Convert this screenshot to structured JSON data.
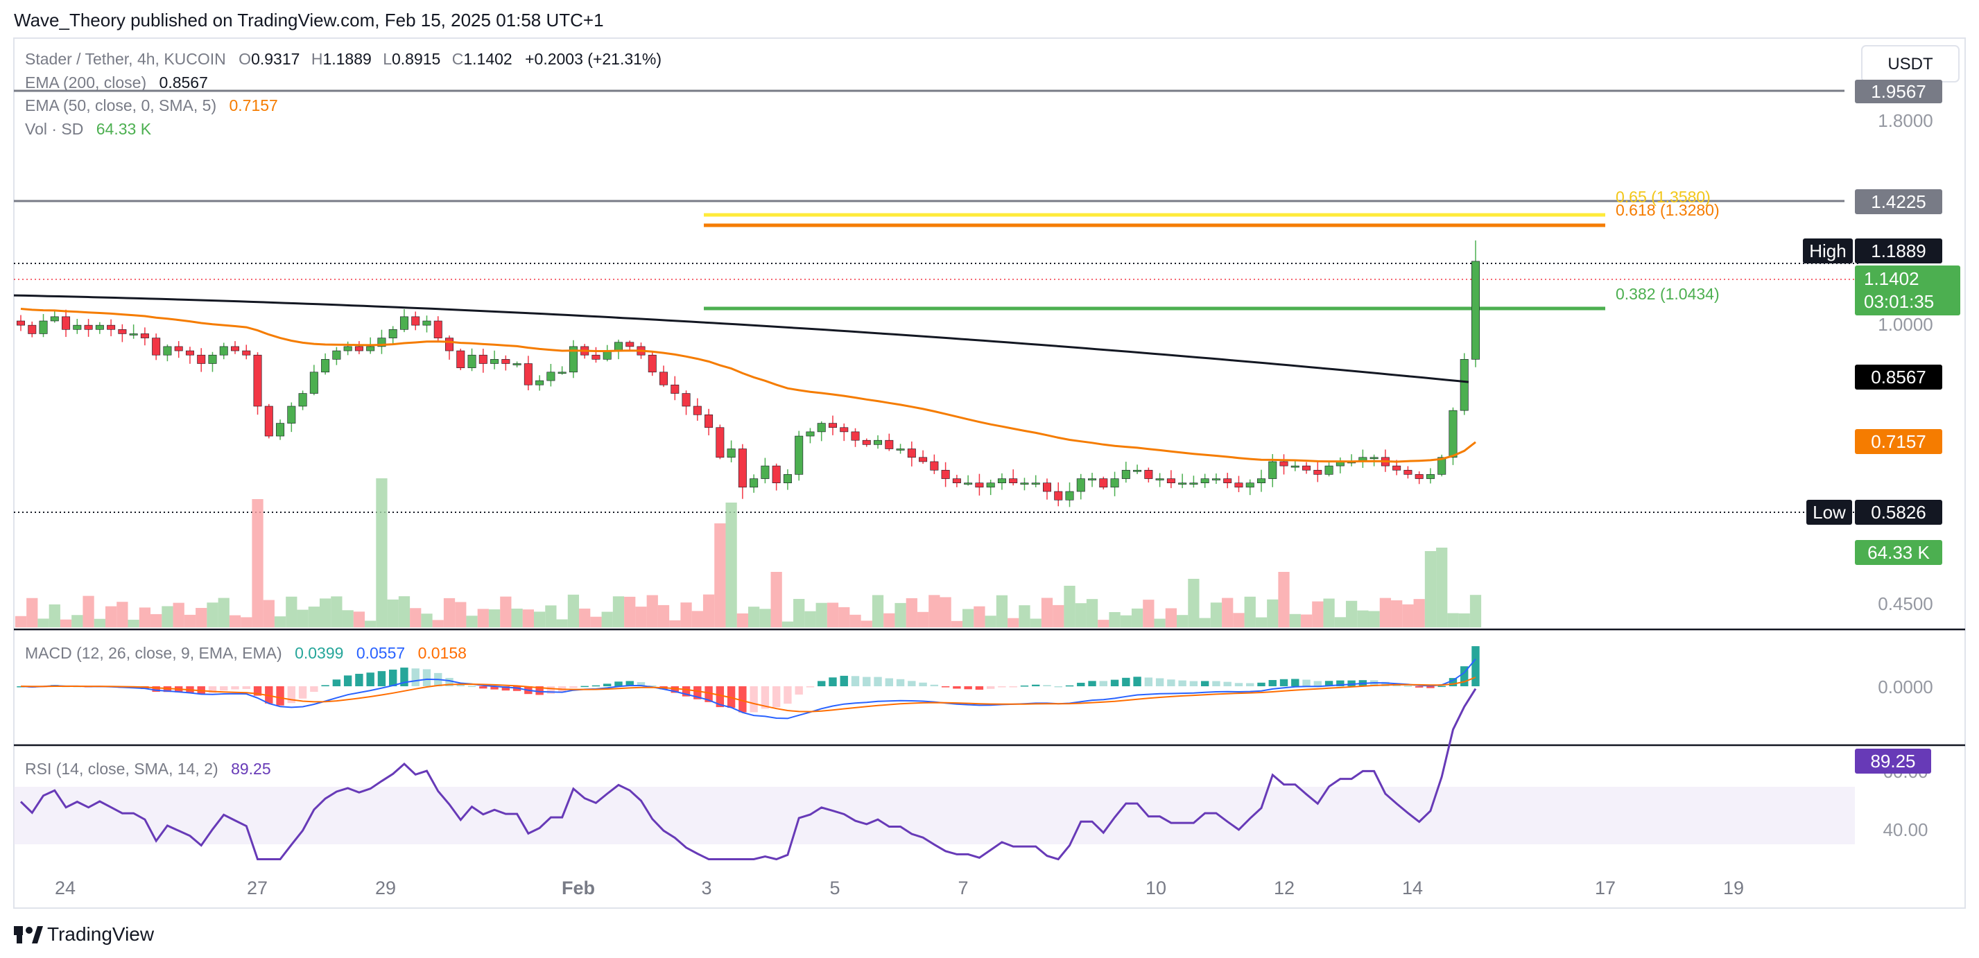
{
  "publisher_line": "Wave_Theory published on TradingView.com, Feb 15, 2025 01:58 UTC+1",
  "footer_brand": "TradingView",
  "currency_button": "USDT",
  "legend": {
    "symbol": "Stader / Tether, 4h, KUCOIN",
    "o_label": "O",
    "o_val": "0.9317",
    "h_label": "H",
    "h_val": "1.1889",
    "l_label": "L",
    "l_val": "0.8915",
    "c_label": "C",
    "c_val": "1.1402",
    "change": "+0.2003 (+21.31%)",
    "ema200_label": "EMA (200, close)",
    "ema200_val": "0.8567",
    "ema50_label": "EMA (50, close, 0, SMA, 5)",
    "ema50_val": "0.7157",
    "vol_label": "Vol · SD",
    "vol_val": "64.33 K"
  },
  "price_axis": {
    "ticks": [
      "1.8000",
      "1.0000",
      "0.4500"
    ],
    "tags": {
      "top_line": "1.9567",
      "mid_line": "1.4225",
      "high_label": "High",
      "high_val": "1.1889",
      "last": "1.1402",
      "countdown": "03:01:35",
      "ema200": "0.8567",
      "ema50": "0.7157",
      "low_label": "Low",
      "low_val": "0.5826",
      "vol": "64.33 K"
    }
  },
  "fib": {
    "f065": "0.65 (1.3580)",
    "f0618": "0.618 (1.3280)",
    "f0382": "0.382 (1.0434)"
  },
  "macd": {
    "label": "MACD (12, 26, close, 9, EMA, EMA)",
    "hist": "0.0399",
    "macd": "0.0557",
    "signal": "0.0158",
    "axis_tick": "0.0000"
  },
  "rsi": {
    "label": "RSI (14, close, SMA, 14, 2)",
    "value": "89.25",
    "axis_tick_top": "60.00",
    "axis_tick": "40.00"
  },
  "time_axis": [
    "24",
    "27",
    "29",
    "Feb",
    "3",
    "5",
    "7",
    "10",
    "12",
    "14",
    "17",
    "19"
  ],
  "colors": {
    "up": "#4caf50",
    "down": "#f23645",
    "ema50": "#f57c00",
    "ema200": "#131722",
    "macd": "#2962ff",
    "signal": "#ff6d00",
    "rsi": "#673ab7",
    "fib_065": "#ffeb3b",
    "fib_0618": "#f57c00",
    "fib_0382": "#4caf50"
  },
  "chart_data": {
    "type": "candlestick",
    "symbol": "Stader / Tether",
    "timeframe": "4h",
    "exchange": "KUCOIN",
    "x_ticks": [
      "24",
      "27",
      "29",
      "Feb",
      "3",
      "5",
      "7",
      "10",
      "12",
      "14",
      "17",
      "19"
    ],
    "price_range": [
      0.45,
      1.9567
    ],
    "horizontal_lines": [
      1.9567,
      1.4225,
      1.1889,
      0.5826
    ],
    "fib_levels": [
      {
        "ratio": 0.65,
        "price": 1.358
      },
      {
        "ratio": 0.618,
        "price": 1.328
      },
      {
        "ratio": 0.382,
        "price": 1.0434
      }
    ],
    "closes": [
      0.99,
      0.97,
      1.0,
      1.01,
      0.98,
      0.99,
      0.98,
      0.99,
      0.98,
      0.97,
      0.97,
      0.96,
      0.92,
      0.94,
      0.93,
      0.92,
      0.9,
      0.92,
      0.94,
      0.93,
      0.92,
      0.8,
      0.73,
      0.76,
      0.8,
      0.83,
      0.88,
      0.91,
      0.93,
      0.94,
      0.93,
      0.94,
      0.96,
      0.98,
      1.01,
      0.99,
      1.0,
      0.96,
      0.93,
      0.89,
      0.92,
      0.9,
      0.91,
      0.9,
      0.9,
      0.85,
      0.86,
      0.88,
      0.88,
      0.94,
      0.92,
      0.91,
      0.93,
      0.95,
      0.94,
      0.92,
      0.88,
      0.85,
      0.83,
      0.8,
      0.78,
      0.75,
      0.68,
      0.7,
      0.61,
      0.63,
      0.66,
      0.62,
      0.64,
      0.73,
      0.74,
      0.76,
      0.75,
      0.74,
      0.72,
      0.71,
      0.72,
      0.7,
      0.7,
      0.68,
      0.67,
      0.65,
      0.63,
      0.62,
      0.62,
      0.61,
      0.62,
      0.63,
      0.62,
      0.62,
      0.62,
      0.6,
      0.58,
      0.6,
      0.63,
      0.63,
      0.61,
      0.63,
      0.65,
      0.65,
      0.63,
      0.63,
      0.62,
      0.62,
      0.62,
      0.63,
      0.63,
      0.62,
      0.61,
      0.62,
      0.63,
      0.67,
      0.66,
      0.66,
      0.65,
      0.64,
      0.66,
      0.67,
      0.67,
      0.68,
      0.68,
      0.66,
      0.65,
      0.64,
      0.63,
      0.64,
      0.68,
      0.79,
      0.91,
      1.14
    ],
    "ema200": {
      "start": 1.06,
      "end": 0.8567
    },
    "ema50": {
      "start": 1.03,
      "end": 0.7157
    },
    "volume_last": "64.33 K",
    "macd": {
      "histogram": 0.0399,
      "macd": 0.0557,
      "signal": 0.0158
    },
    "rsi": {
      "value": 89.25,
      "band": [
        40,
        60
      ]
    }
  }
}
